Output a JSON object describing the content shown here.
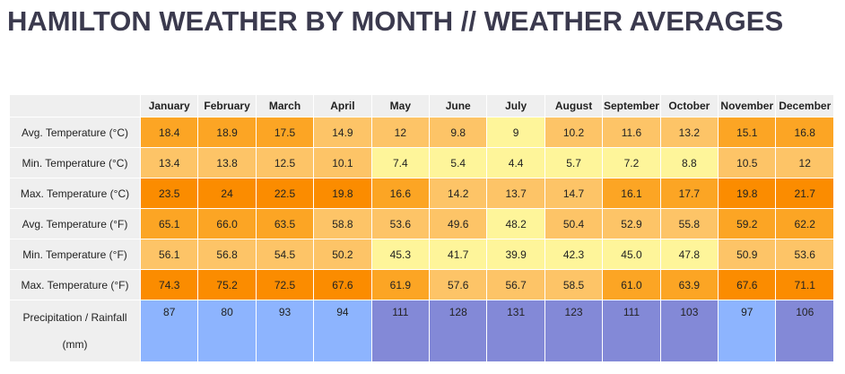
{
  "page": {
    "title": "HAMILTON WEATHER BY MONTH // WEATHER AVERAGES"
  },
  "table": {
    "months": [
      "January",
      "February",
      "March",
      "April",
      "May",
      "June",
      "July",
      "August",
      "September",
      "October",
      "November",
      "December"
    ],
    "rows": [
      {
        "label": "Avg. Temperature (°C)",
        "kind": "temp",
        "values": [
          "18.4",
          "18.9",
          "17.5",
          "14.9",
          "12",
          "9.8",
          "9",
          "10.2",
          "11.6",
          "13.2",
          "15.1",
          "16.8"
        ],
        "levels": [
          "warm",
          "warm",
          "warm",
          "mild",
          "mild",
          "mild",
          "cool",
          "mild",
          "mild",
          "mild",
          "warm",
          "warm"
        ]
      },
      {
        "label": "Min. Temperature (°C)",
        "kind": "temp",
        "values": [
          "13.4",
          "13.8",
          "12.5",
          "10.1",
          "7.4",
          "5.4",
          "4.4",
          "5.7",
          "7.2",
          "8.8",
          "10.5",
          "12"
        ],
        "levels": [
          "mild",
          "mild",
          "mild",
          "mild",
          "cool",
          "cool",
          "cool",
          "cool",
          "cool",
          "cool",
          "mild",
          "mild"
        ]
      },
      {
        "label": "Max. Temperature (°C)",
        "kind": "temp",
        "values": [
          "23.5",
          "24",
          "22.5",
          "19.8",
          "16.6",
          "14.2",
          "13.7",
          "14.7",
          "16.1",
          "17.7",
          "19.8",
          "21.7"
        ],
        "levels": [
          "hot",
          "hot",
          "hot",
          "hot",
          "warm",
          "mild",
          "mild",
          "mild",
          "warm",
          "warm",
          "hot",
          "hot"
        ]
      },
      {
        "label": "Avg. Temperature (°F)",
        "kind": "temp",
        "values": [
          "65.1",
          "66.0",
          "63.5",
          "58.8",
          "53.6",
          "49.6",
          "48.2",
          "50.4",
          "52.9",
          "55.8",
          "59.2",
          "62.2"
        ],
        "levels": [
          "warm",
          "warm",
          "warm",
          "mild",
          "mild",
          "mild",
          "cool",
          "mild",
          "mild",
          "mild",
          "warm",
          "warm"
        ]
      },
      {
        "label": "Min. Temperature (°F)",
        "kind": "temp",
        "values": [
          "56.1",
          "56.8",
          "54.5",
          "50.2",
          "45.3",
          "41.7",
          "39.9",
          "42.3",
          "45.0",
          "47.8",
          "50.9",
          "53.6"
        ],
        "levels": [
          "mild",
          "mild",
          "mild",
          "mild",
          "cool",
          "cool",
          "cool",
          "cool",
          "cool",
          "cool",
          "mild",
          "mild"
        ]
      },
      {
        "label": "Max. Temperature (°F)",
        "kind": "temp",
        "values": [
          "74.3",
          "75.2",
          "72.5",
          "67.6",
          "61.9",
          "57.6",
          "56.7",
          "58.5",
          "61.0",
          "63.9",
          "67.6",
          "71.1"
        ],
        "levels": [
          "hot",
          "hot",
          "hot",
          "hot",
          "warm",
          "mild",
          "mild",
          "mild",
          "warm",
          "warm",
          "hot",
          "hot"
        ]
      },
      {
        "label": "Precipitation / Rainfall (mm)",
        "kind": "precip",
        "values": [
          "87",
          "80",
          "93",
          "94",
          "111",
          "128",
          "131",
          "123",
          "111",
          "103",
          "97",
          "106"
        ],
        "levels": [
          "low",
          "low",
          "low",
          "low",
          "high",
          "high",
          "high",
          "high",
          "high",
          "high",
          "low",
          "high"
        ]
      }
    ]
  }
}
